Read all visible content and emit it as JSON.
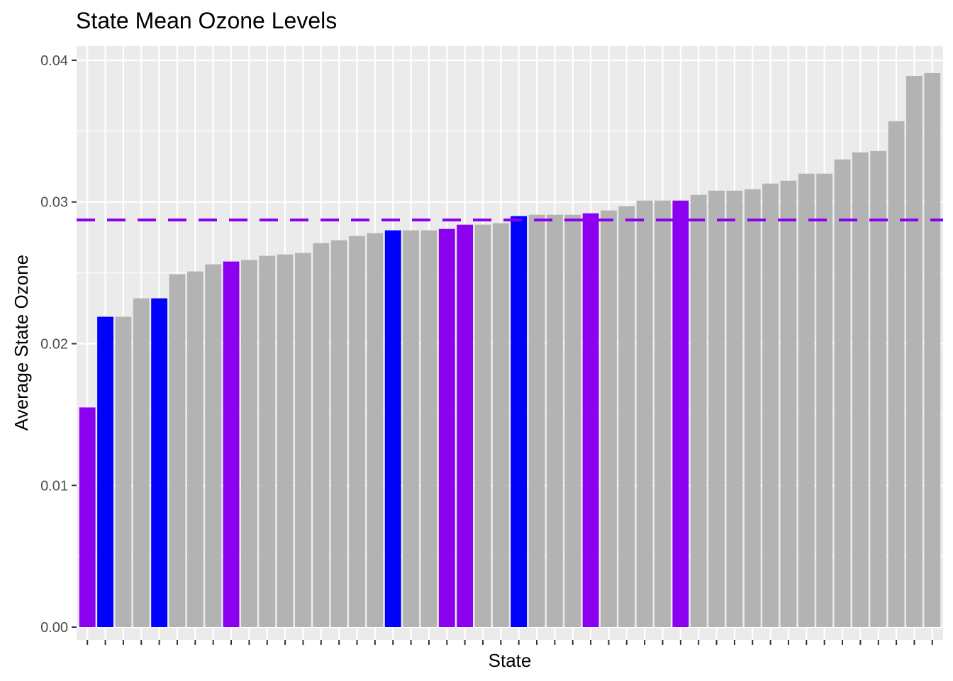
{
  "chart_data": {
    "type": "bar",
    "title": "State Mean Ozone Levels",
    "xlabel": "State",
    "ylabel": "Average State Ozone",
    "ylim": [
      -0.0009,
      0.041
    ],
    "yticks": [
      0.0,
      0.01,
      0.02,
      0.03,
      0.04
    ],
    "ytick_labels": [
      "0.00",
      "0.01",
      "0.02",
      "0.03",
      "0.04"
    ],
    "x_tick_labels_shown": false,
    "grid": true,
    "legend": "none",
    "reference_line": {
      "value": 0.02873,
      "style": "dashed",
      "color": "#8B00EE"
    },
    "colors": {
      "gray": "#B3B3B3",
      "blue": "#0000FF",
      "purple": "#8B00EE",
      "panel": "#EBEBEB",
      "grid": "#FFFFFF"
    },
    "values": [
      0.0155,
      0.0219,
      0.0219,
      0.0232,
      0.0232,
      0.0249,
      0.0251,
      0.0256,
      0.0258,
      0.0259,
      0.0262,
      0.0263,
      0.0264,
      0.0271,
      0.0273,
      0.0276,
      0.0278,
      0.028,
      0.028,
      0.028,
      0.0281,
      0.0284,
      0.0284,
      0.0285,
      0.029,
      0.0291,
      0.0291,
      0.0291,
      0.0292,
      0.0294,
      0.0297,
      0.0301,
      0.0301,
      0.0301,
      0.0305,
      0.0308,
      0.0308,
      0.0309,
      0.0313,
      0.0315,
      0.032,
      0.032,
      0.033,
      0.0335,
      0.0336,
      0.0357,
      0.0389,
      0.0391
    ],
    "bar_colors": [
      "purple",
      "blue",
      "gray",
      "gray",
      "blue",
      "gray",
      "gray",
      "gray",
      "purple",
      "gray",
      "gray",
      "gray",
      "gray",
      "gray",
      "gray",
      "gray",
      "gray",
      "blue",
      "gray",
      "gray",
      "purple",
      "purple",
      "gray",
      "gray",
      "blue",
      "gray",
      "gray",
      "gray",
      "purple",
      "gray",
      "gray",
      "gray",
      "gray",
      "purple",
      "gray",
      "gray",
      "gray",
      "gray",
      "gray",
      "gray",
      "gray",
      "gray",
      "gray",
      "gray",
      "gray",
      "gray",
      "gray",
      "gray"
    ]
  }
}
